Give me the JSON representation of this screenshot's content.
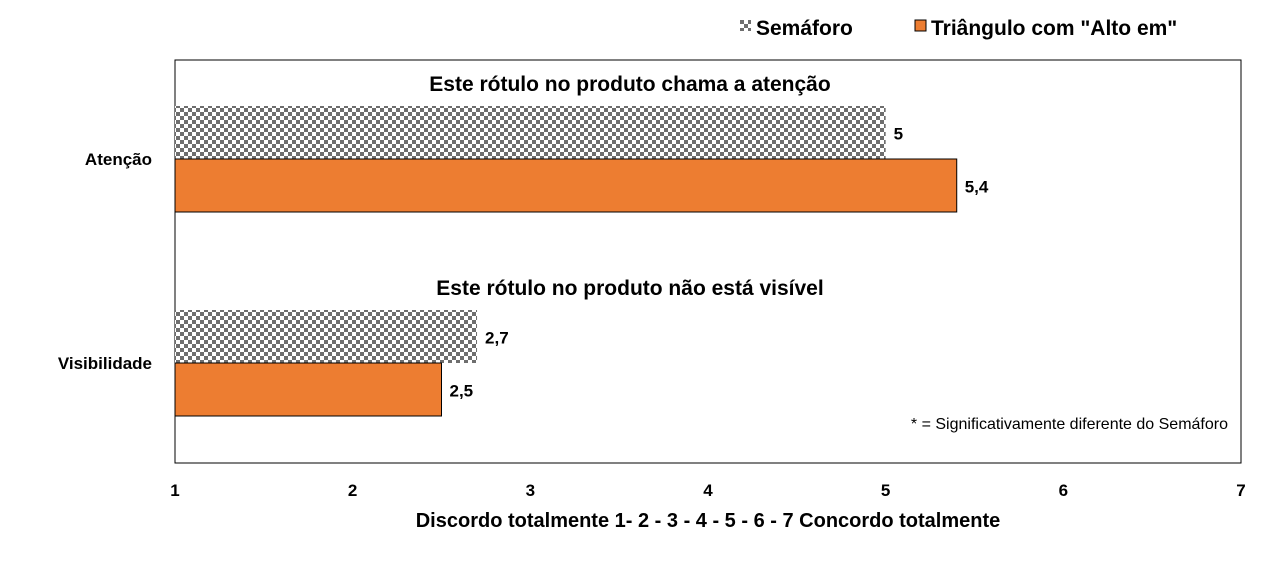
{
  "chart_data": {
    "type": "bar",
    "orientation": "horizontal",
    "categories": [
      "Atenção",
      "Visibilidade"
    ],
    "category_titles": [
      "Este rótulo no produto chama a atenção",
      "Este rótulo no produto não está visível"
    ],
    "series": [
      {
        "name": "Semáforo",
        "values": [
          5,
          2.7
        ],
        "value_labels": [
          "5",
          "2,7"
        ],
        "color": "#808080",
        "pattern": "checkerboard"
      },
      {
        "name": "Triângulo com \"Alto em\"",
        "values": [
          5.4,
          2.5
        ],
        "value_labels": [
          "5,4",
          "2,5"
        ],
        "color": "#ED7D31",
        "pattern": "solid"
      }
    ],
    "xlim": [
      1,
      7
    ],
    "xticks": [
      "1",
      "2",
      "3",
      "4",
      "5",
      "6",
      "7"
    ],
    "xlabel": "Discordo totalmente 1- 2 - 3 - 4 - 5 - 6 - 7 Concordo totalmente",
    "annotation": "* = Significativamente  diferente do Semáforo",
    "legend_position": "top-right",
    "grid": false
  }
}
